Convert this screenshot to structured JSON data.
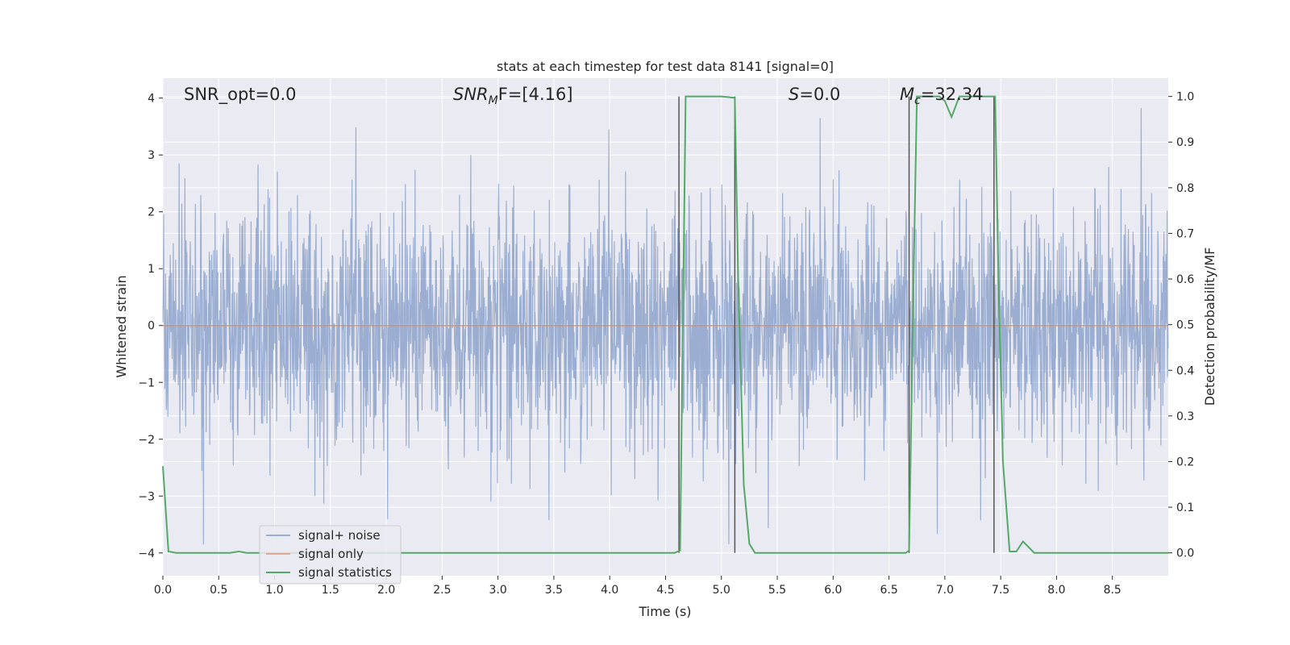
{
  "chart_data": {
    "type": "line",
    "title": "stats at each timestep for test data 8141 [signal=0]",
    "xlabel": "Time (s)",
    "ylabel_left": "Whitened strain",
    "ylabel_right": "Detection probability/MF",
    "xlim": [
      0.0,
      9.0
    ],
    "ylim_left": [
      -4.4,
      4.35
    ],
    "ylim_right": [
      -0.05,
      1.04
    ],
    "grid": true,
    "legend_position": "lower-left",
    "x_ticks": [
      "0.0",
      "0.5",
      "1.0",
      "1.5",
      "2.0",
      "2.5",
      "3.0",
      "3.5",
      "4.0",
      "4.5",
      "5.0",
      "5.5",
      "6.0",
      "6.5",
      "7.0",
      "7.5",
      "8.0",
      "8.5"
    ],
    "y_ticks_left": [
      "4",
      "3",
      "2",
      "1",
      "0",
      "−1",
      "−2",
      "−3",
      "−4"
    ],
    "y_ticks_right": [
      "1.0",
      "0.9",
      "0.8",
      "0.7",
      "0.6",
      "0.5",
      "0.4",
      "0.3",
      "0.2",
      "0.1",
      "0.0"
    ],
    "annotations": {
      "snr_opt": "SNR_opt=0.0",
      "snr_mf_main": "SNR",
      "snr_mf_sub": "M",
      "snr_mf_rest": "F=[4.16]",
      "s_italic": "S",
      "s_rest": "=0.0",
      "mc_main": "M",
      "mc_sub": "c",
      "mc_rest": "=32.34"
    },
    "series": [
      {
        "name": "signal+ noise",
        "color": "#4c72b0",
        "axis": "left",
        "description_values": {
          "x_range": [
            0.0,
            9.0
          ],
          "typical_envelope": [
            -2.6,
            2.6
          ],
          "max_approx": 3.9,
          "min_approx": -3.85
        }
      },
      {
        "name": "signal only",
        "color": "#dd8452",
        "axis": "left",
        "x": [
          0.0,
          9.0
        ],
        "y": [
          0.0,
          0.0
        ]
      },
      {
        "name": "signal statistics",
        "color": "#55a868",
        "axis": "right",
        "x": [
          0.0,
          0.05,
          0.12,
          0.3,
          0.5,
          0.6,
          0.68,
          0.75,
          1.0,
          2.0,
          3.0,
          4.0,
          4.5,
          4.58,
          4.63,
          4.68,
          5.0,
          5.12,
          5.15,
          5.2,
          5.25,
          5.3,
          5.5,
          6.0,
          6.5,
          6.65,
          6.68,
          6.72,
          6.75,
          6.8,
          6.95,
          7.0,
          7.06,
          7.13,
          7.2,
          7.3,
          7.45,
          7.48,
          7.52,
          7.58,
          7.64,
          7.7,
          7.8,
          7.88,
          8.0,
          8.5,
          9.0
        ],
        "y": [
          0.19,
          0.003,
          0.0,
          0.0,
          0.0,
          0.0,
          0.003,
          0.0,
          0.0,
          0.0,
          0.0,
          0.0,
          0.0,
          0.0,
          0.005,
          1.0,
          1.0,
          0.997,
          0.6,
          0.15,
          0.02,
          0.0,
          0.0,
          0.0,
          0.0,
          0.0,
          0.005,
          0.6,
          1.0,
          1.0,
          1.0,
          0.99,
          0.955,
          1.0,
          1.0,
          1.0,
          1.0,
          0.6,
          0.2,
          0.003,
          0.003,
          0.025,
          0.0,
          0.0,
          0.0,
          0.0,
          0.0
        ]
      }
    ],
    "markers": {
      "color": "#555555",
      "vertical_lines_x": [
        4.62,
        5.12,
        6.68,
        7.44
      ],
      "y_range_right": [
        0.0,
        1.0
      ]
    }
  }
}
